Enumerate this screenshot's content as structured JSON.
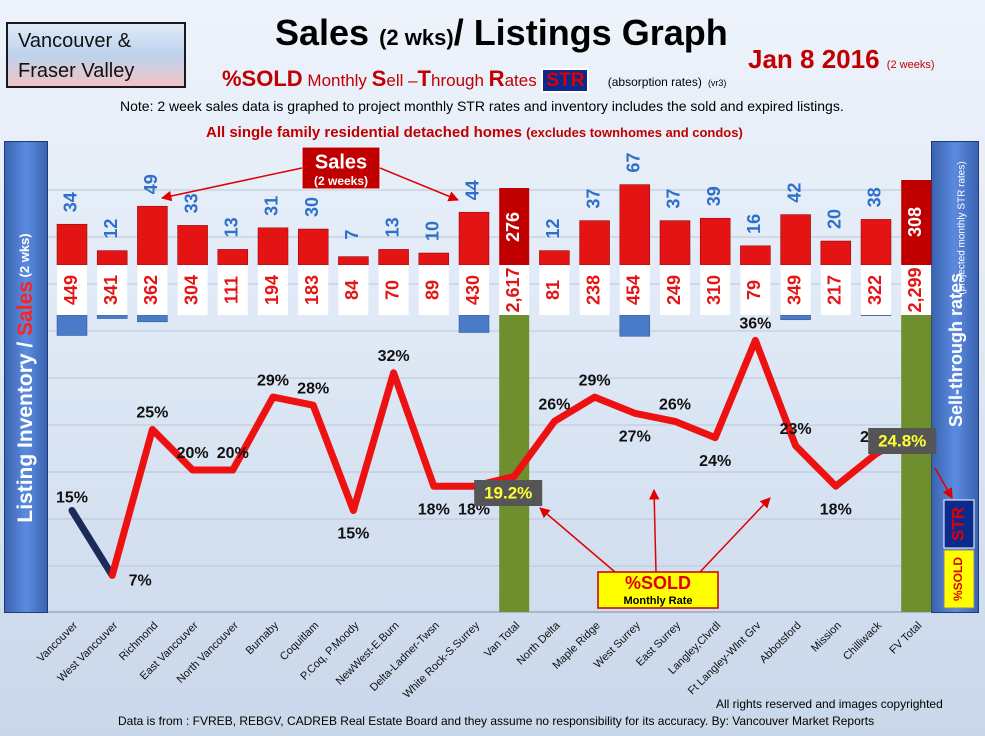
{
  "header": {
    "region_line1": "Vancouver &",
    "region_line2": "Fraser Valley",
    "title_a": "Sales ",
    "title_b": "(2 wks)",
    "title_c": "/ Listings Graph",
    "date_main": "Jan 8 2016",
    "date_sub": "(2 weeks)",
    "sub_pct": "%SOLD",
    "sub_rest_1": " Monthly ",
    "sub_S": "S",
    "sub_rest_2": "ell –",
    "sub_T": "T",
    "sub_rest_3": "hrough ",
    "sub_R": "R",
    "sub_rest_4": "ates ",
    "sub_str": "STR",
    "sub_abs": "(absorption rates)",
    "sub_ver": "(vr3)",
    "note": "Note: 2 week sales data is graphed to project monthly STR rates and inventory includes the sold and expired listings.",
    "scope_a": "All single family residential detached homes",
    "scope_b": "(excludes townhomes and condos)"
  },
  "left_axis": {
    "part1": "Listing Inventory / ",
    "part2": "Sales",
    "part3": " (2 wks)"
  },
  "right_axis": {
    "main": "Sell-through rates",
    "sub": "(projected monthly STR rates)",
    "str": "STR",
    "pct": "%SOLD"
  },
  "callouts": {
    "sales_title": "Sales",
    "sales_sub": "(2 weeks)",
    "sold_title": "%SOLD",
    "sold_sub": "Monthly Rate"
  },
  "footer": {
    "rights": "All rights reserved and  images copyrighted",
    "source": "Data is from : FVREB, REBGV, CADREB Real Estate Board and they assume no responsibility for its accuracy. By: Vancouver Market Reports"
  },
  "colors": {
    "sales": "#e41414",
    "inventory": "#4a7bc8",
    "total_bar": "#6f8f2e",
    "line": "#ee1111",
    "label_blue": "#2e6fc9",
    "label_red": "#e41414"
  },
  "chart_data": {
    "type": "bar",
    "categories": [
      "Vancouver",
      "West Vancouver",
      "Richmond",
      "East Vancouver",
      "North Vancouver",
      "Burnaby",
      "Coquitlam",
      "P.Coq, P.Moody",
      "NewWest-E.Burn",
      "Delta-Ladner-Twsn",
      "White Rock-S.Surrey",
      "Van Total",
      "North Delta",
      "Maple Ridge",
      "West Surrey",
      "East Surrey",
      "Langley,Clvrdl",
      "Ft Langley-Wlnt Grv",
      "Abbotsford",
      "Mission",
      "Chilliwack",
      "FV Total"
    ],
    "series": [
      {
        "name": "Sales",
        "values": [
          34,
          12,
          49,
          33,
          13,
          31,
          30,
          7,
          13,
          10,
          44,
          276,
          12,
          37,
          67,
          37,
          39,
          16,
          42,
          20,
          38,
          308
        ]
      },
      {
        "name": "Listing Inventory",
        "values": [
          449,
          341,
          362,
          304,
          111,
          194,
          183,
          84,
          70,
          89,
          430,
          2617,
          81,
          238,
          454,
          249,
          310,
          79,
          349,
          217,
          322,
          2299
        ]
      },
      {
        "name": "%SOLD Monthly Rate",
        "values": [
          15,
          7,
          25,
          20,
          20,
          29,
          28,
          15,
          32,
          18,
          18,
          19.2,
          26,
          29,
          27,
          26,
          24,
          36,
          23,
          18,
          22,
          24.8
        ]
      }
    ],
    "value_labels": {
      "sales": [
        "34",
        "12",
        "49",
        "33",
        "13",
        "31",
        "30",
        "7",
        "13",
        "10",
        "44",
        "276",
        "12",
        "37",
        "67",
        "37",
        "39",
        "16",
        "42",
        "20",
        "38",
        "308"
      ],
      "inventory": [
        "449",
        "341",
        "362",
        "304",
        "111",
        "194",
        "183",
        "84",
        "70",
        "89",
        "430",
        "2,617",
        "81",
        "238",
        "454",
        "249",
        "310",
        "79",
        "349",
        "217",
        "322",
        "2,299"
      ],
      "sold_pct": [
        "15%",
        "7%",
        "25%",
        "20%",
        "20%",
        "29%",
        "28%",
        "15%",
        "32%",
        "18%",
        "18%",
        "19.2%",
        "26%",
        "29%",
        "27%",
        "26%",
        "24%",
        "36%",
        "23%",
        "18%",
        "22%",
        "24.8%"
      ]
    },
    "total_indices": [
      11,
      21
    ],
    "grid": true
  }
}
